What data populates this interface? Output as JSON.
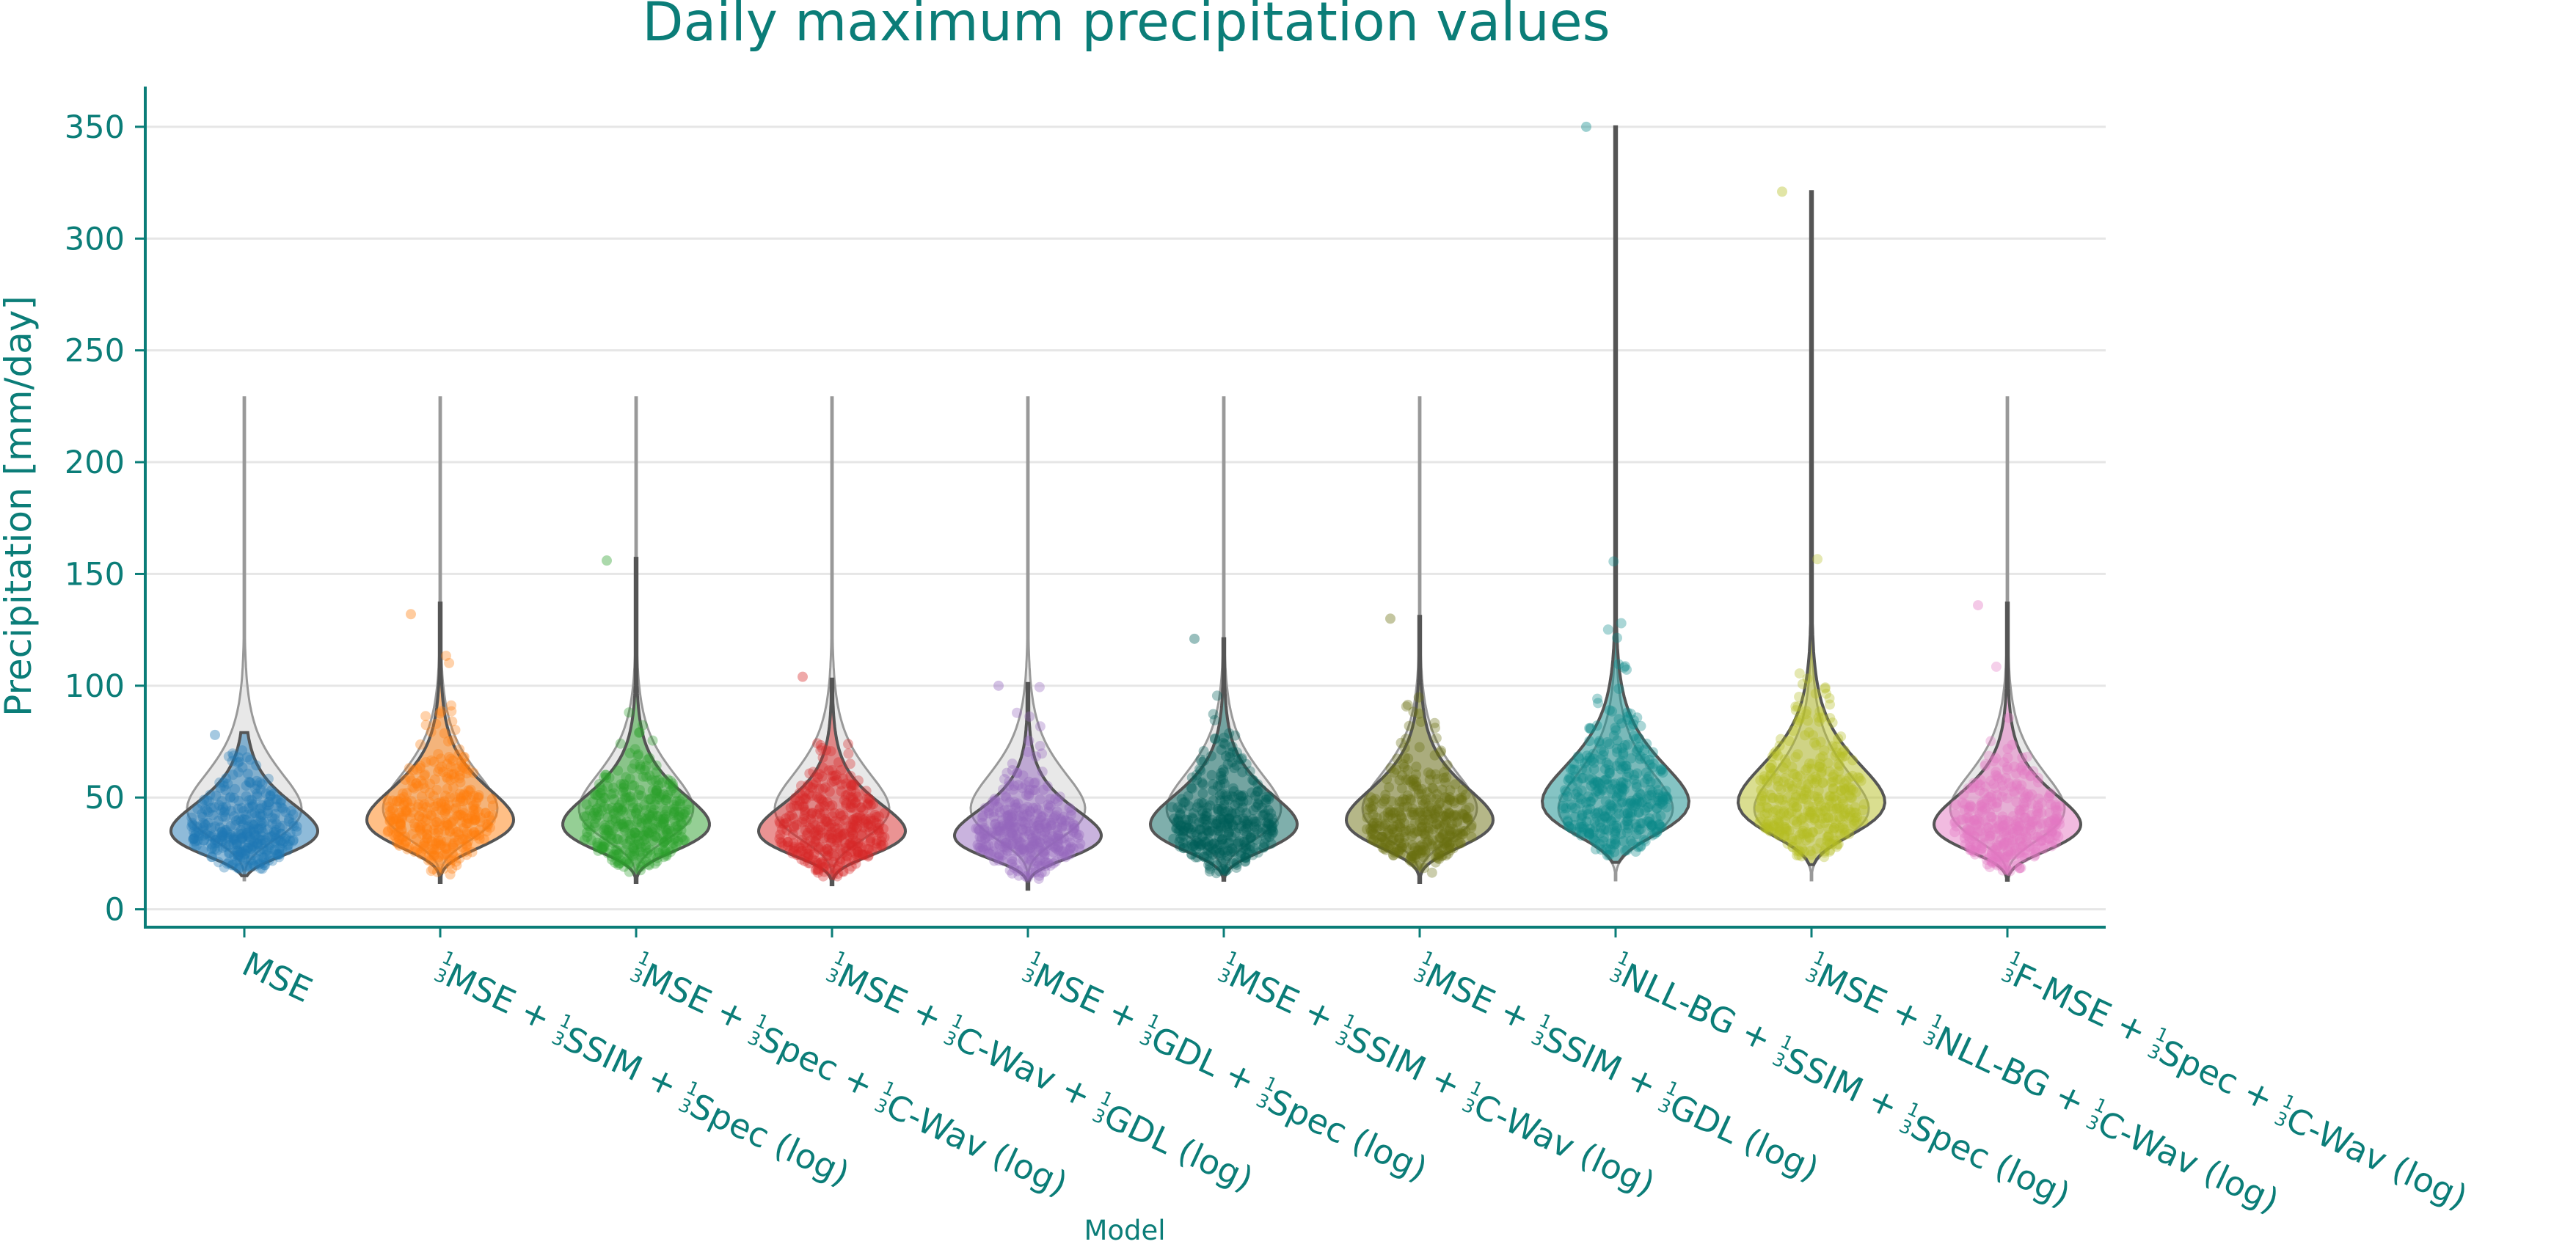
{
  "chart_data": {
    "type": "violin",
    "title": "Daily maximum precipitation values",
    "xlabel": "Model",
    "ylabel": "Precipitation [mm/day]",
    "ylim": [
      -8,
      368
    ],
    "yticks": [
      0,
      50,
      100,
      150,
      200,
      250,
      300,
      350
    ],
    "grid": "horizontal",
    "reference_distribution": {
      "description_color": "#cccccc",
      "min": 13,
      "max": 229,
      "mode": 45
    },
    "categories": [
      {
        "id": "mse",
        "label": [
          {
            "t": "MSE"
          }
        ]
      },
      {
        "id": "m2",
        "label": [
          {
            "f": true
          },
          {
            "t": "MSE + "
          },
          {
            "f": true
          },
          {
            "t": "SSIM + "
          },
          {
            "f": true
          },
          {
            "t": "Spec (log)"
          }
        ]
      },
      {
        "id": "m3",
        "label": [
          {
            "f": true
          },
          {
            "t": "MSE + "
          },
          {
            "f": true
          },
          {
            "t": "Spec + "
          },
          {
            "f": true
          },
          {
            "t": "C-Wav (log)"
          }
        ]
      },
      {
        "id": "m4",
        "label": [
          {
            "f": true
          },
          {
            "t": "MSE + "
          },
          {
            "f": true
          },
          {
            "t": "C-Wav + "
          },
          {
            "f": true
          },
          {
            "t": "GDL (log)"
          }
        ]
      },
      {
        "id": "m5",
        "label": [
          {
            "f": true
          },
          {
            "t": "MSE + "
          },
          {
            "f": true
          },
          {
            "t": "GDL + "
          },
          {
            "f": true
          },
          {
            "t": "Spec (log)"
          }
        ]
      },
      {
        "id": "m6",
        "label": [
          {
            "f": true
          },
          {
            "t": "MSE + "
          },
          {
            "f": true
          },
          {
            "t": "SSIM + "
          },
          {
            "f": true
          },
          {
            "t": "C-Wav (log)"
          }
        ]
      },
      {
        "id": "m7",
        "label": [
          {
            "f": true
          },
          {
            "t": "MSE + "
          },
          {
            "f": true
          },
          {
            "t": "SSIM + "
          },
          {
            "f": true
          },
          {
            "t": "GDL (log)"
          }
        ]
      },
      {
        "id": "m8",
        "label": [
          {
            "f": true
          },
          {
            "t": "NLL-BG + "
          },
          {
            "f": true
          },
          {
            "t": "SSIM + "
          },
          {
            "f": true
          },
          {
            "t": "Spec (log)"
          }
        ]
      },
      {
        "id": "m9",
        "label": [
          {
            "f": true
          },
          {
            "t": "MSE + "
          },
          {
            "f": true
          },
          {
            "t": "NLL-BG + "
          },
          {
            "f": true
          },
          {
            "t": "C-Wav (log)"
          }
        ]
      },
      {
        "id": "m10",
        "label": [
          {
            "f": true
          },
          {
            "t": "F-MSE + "
          },
          {
            "f": true
          },
          {
            "t": "Spec + "
          },
          {
            "f": true
          },
          {
            "t": "C-Wav (log)"
          }
        ]
      }
    ],
    "fraction": {
      "numerator": "1",
      "denominator": "3"
    },
    "series": [
      {
        "color": "#1f77b4",
        "min": 15,
        "max": 79,
        "mode": 35,
        "points_max": 78
      },
      {
        "color": "#ff7f0e",
        "min": 12,
        "max": 137,
        "mode": 40,
        "points_max": 132
      },
      {
        "color": "#2ca02c",
        "min": 12,
        "max": 157,
        "mode": 38,
        "points_max": 156
      },
      {
        "color": "#d62728",
        "min": 11,
        "max": 103,
        "mode": 35,
        "points_max": 104
      },
      {
        "color": "#9467bd",
        "min": 9,
        "max": 101,
        "mode": 33,
        "points_max": 100
      },
      {
        "color": "#005f5a",
        "min": 13,
        "max": 121,
        "mode": 38,
        "points_max": 121
      },
      {
        "color": "#6b7012",
        "min": 12,
        "max": 131,
        "mode": 40,
        "points_max": 130
      },
      {
        "color": "#0b8a8a",
        "min": 21,
        "max": 350,
        "mode": 48,
        "points_max": 350
      },
      {
        "color": "#b5bd21",
        "min": 20,
        "max": 321,
        "mode": 48,
        "points_max": 321
      },
      {
        "color": "#e377c2",
        "min": 13,
        "max": 137,
        "mode": 38,
        "points_max": 136
      }
    ]
  }
}
